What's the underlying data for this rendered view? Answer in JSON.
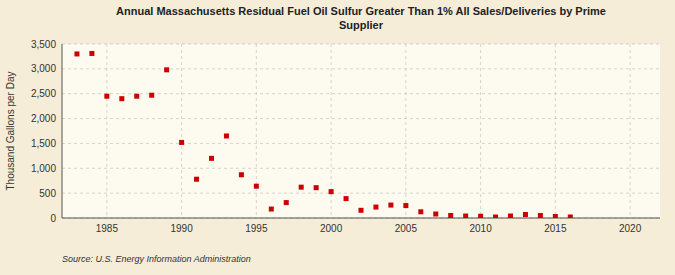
{
  "chart_data": {
    "type": "scatter",
    "title": "Annual Massachusetts Residual Fuel Oil Sulfur Greater Than 1% All Sales/Deliveries by Prime\nSupplier",
    "y_label": "Thousand Gallons per Day",
    "source": "Source: U.S. Energy Information Administration",
    "x": [
      1983,
      1984,
      1985,
      1986,
      1987,
      1988,
      1989,
      1990,
      1991,
      1992,
      1993,
      1994,
      1995,
      1996,
      1997,
      1998,
      1999,
      2000,
      2001,
      2002,
      2003,
      2004,
      2005,
      2006,
      2007,
      2008,
      2009,
      2010,
      2011,
      2012,
      2013,
      2014,
      2015,
      2016
    ],
    "values": [
      3300,
      3310,
      2450,
      2400,
      2450,
      2470,
      2980,
      1520,
      780,
      1200,
      1650,
      870,
      640,
      180,
      310,
      620,
      610,
      530,
      390,
      155,
      220,
      260,
      250,
      125,
      80,
      50,
      40,
      35,
      20,
      40,
      70,
      50,
      30,
      20
    ],
    "color": "#cc0000",
    "marker": "square",
    "xlim": [
      1982,
      2022
    ],
    "ylim": [
      0,
      3500
    ],
    "xticks": [
      1985,
      1990,
      1995,
      2000,
      2005,
      2010,
      2015,
      2020
    ],
    "yticks": [
      0,
      500,
      {
        "value": 1000,
        "label": "1,000"
      },
      {
        "value": 1500,
        "label": "1,500"
      },
      {
        "value": 2000,
        "label": "2,000"
      },
      {
        "value": 2500,
        "label": "2,500"
      },
      {
        "value": 3000,
        "label": "3,000"
      },
      {
        "value": 3500,
        "label": "3,500"
      }
    ],
    "grid": true
  }
}
